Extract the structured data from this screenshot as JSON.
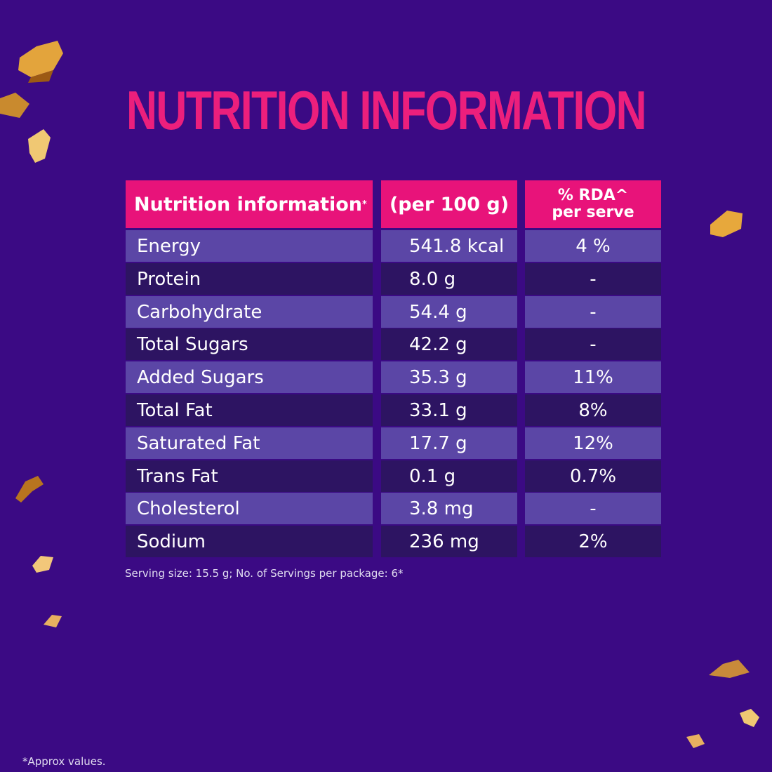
{
  "title": "NUTRITION INFORMATION",
  "table": {
    "headers": {
      "col1": "Nutrition information",
      "col1_mark": "*",
      "col2": "(per 100 g)",
      "col3_line1": "% RDA^",
      "col3_line2": "per serve"
    },
    "rows": [
      {
        "nutrient": "Energy",
        "per100g": "541.8 kcal",
        "rda": "4 %"
      },
      {
        "nutrient": "Protein",
        "per100g": "8.0 g",
        "rda": "-"
      },
      {
        "nutrient": "Carbohydrate",
        "per100g": "54.4 g",
        "rda": "-"
      },
      {
        "nutrient": "Total Sugars",
        "per100g": "42.2 g",
        "rda": "-"
      },
      {
        "nutrient": "Added Sugars",
        "per100g": "35.3 g",
        "rda": "11%"
      },
      {
        "nutrient": "Total Fat",
        "per100g": "33.1 g",
        "rda": "8%"
      },
      {
        "nutrient": "Saturated Fat",
        "per100g": "17.7 g",
        "rda": "12%"
      },
      {
        "nutrient": "Trans Fat",
        "per100g": "0.1 g",
        "rda": "0.7%"
      },
      {
        "nutrient": "Cholesterol",
        "per100g": "3.8 mg",
        "rda": "-"
      },
      {
        "nutrient": "Sodium",
        "per100g": "236 mg",
        "rda": "2%"
      }
    ]
  },
  "serving_note": "Serving size: 15.5 g; No. of Servings per package: 6*",
  "approx_note": "*Approx values.",
  "colors": {
    "background": "#3b0a84",
    "accent_pink": "#e8137a",
    "row_light": "#5b46a6",
    "row_dark": "#2d1462"
  }
}
